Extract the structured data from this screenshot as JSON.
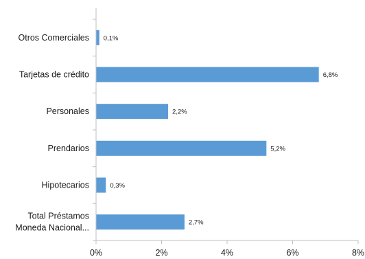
{
  "chart_data": {
    "type": "bar",
    "orientation": "horizontal",
    "categories": [
      "Otros Comerciales",
      "Tarjetas de crédito",
      "Personales",
      "Prendarios",
      "Hipotecarios",
      "Total Préstamos Moneda Nacional..."
    ],
    "category_lines": [
      [
        "Otros Comerciales"
      ],
      [
        "Tarjetas de crédito"
      ],
      [
        "Personales"
      ],
      [
        "Prendarios"
      ],
      [
        "Hipotecarios"
      ],
      [
        "Total Préstamos",
        "Moneda Nacional..."
      ]
    ],
    "values": [
      0.1,
      6.8,
      2.2,
      5.2,
      0.3,
      2.7
    ],
    "value_labels": [
      "0,1%",
      "6,8%",
      "2,2%",
      "5,2%",
      "0,3%",
      "2,7%"
    ],
    "ticks": [
      0,
      2,
      4,
      6,
      8
    ],
    "tick_labels": [
      "0%",
      "2%",
      "4%",
      "6%",
      "8%"
    ],
    "xlim": [
      0,
      8
    ],
    "bar_color": "#5b9bd5",
    "grid": false,
    "legend": "none",
    "title": "",
    "xlabel": "",
    "ylabel": ""
  }
}
